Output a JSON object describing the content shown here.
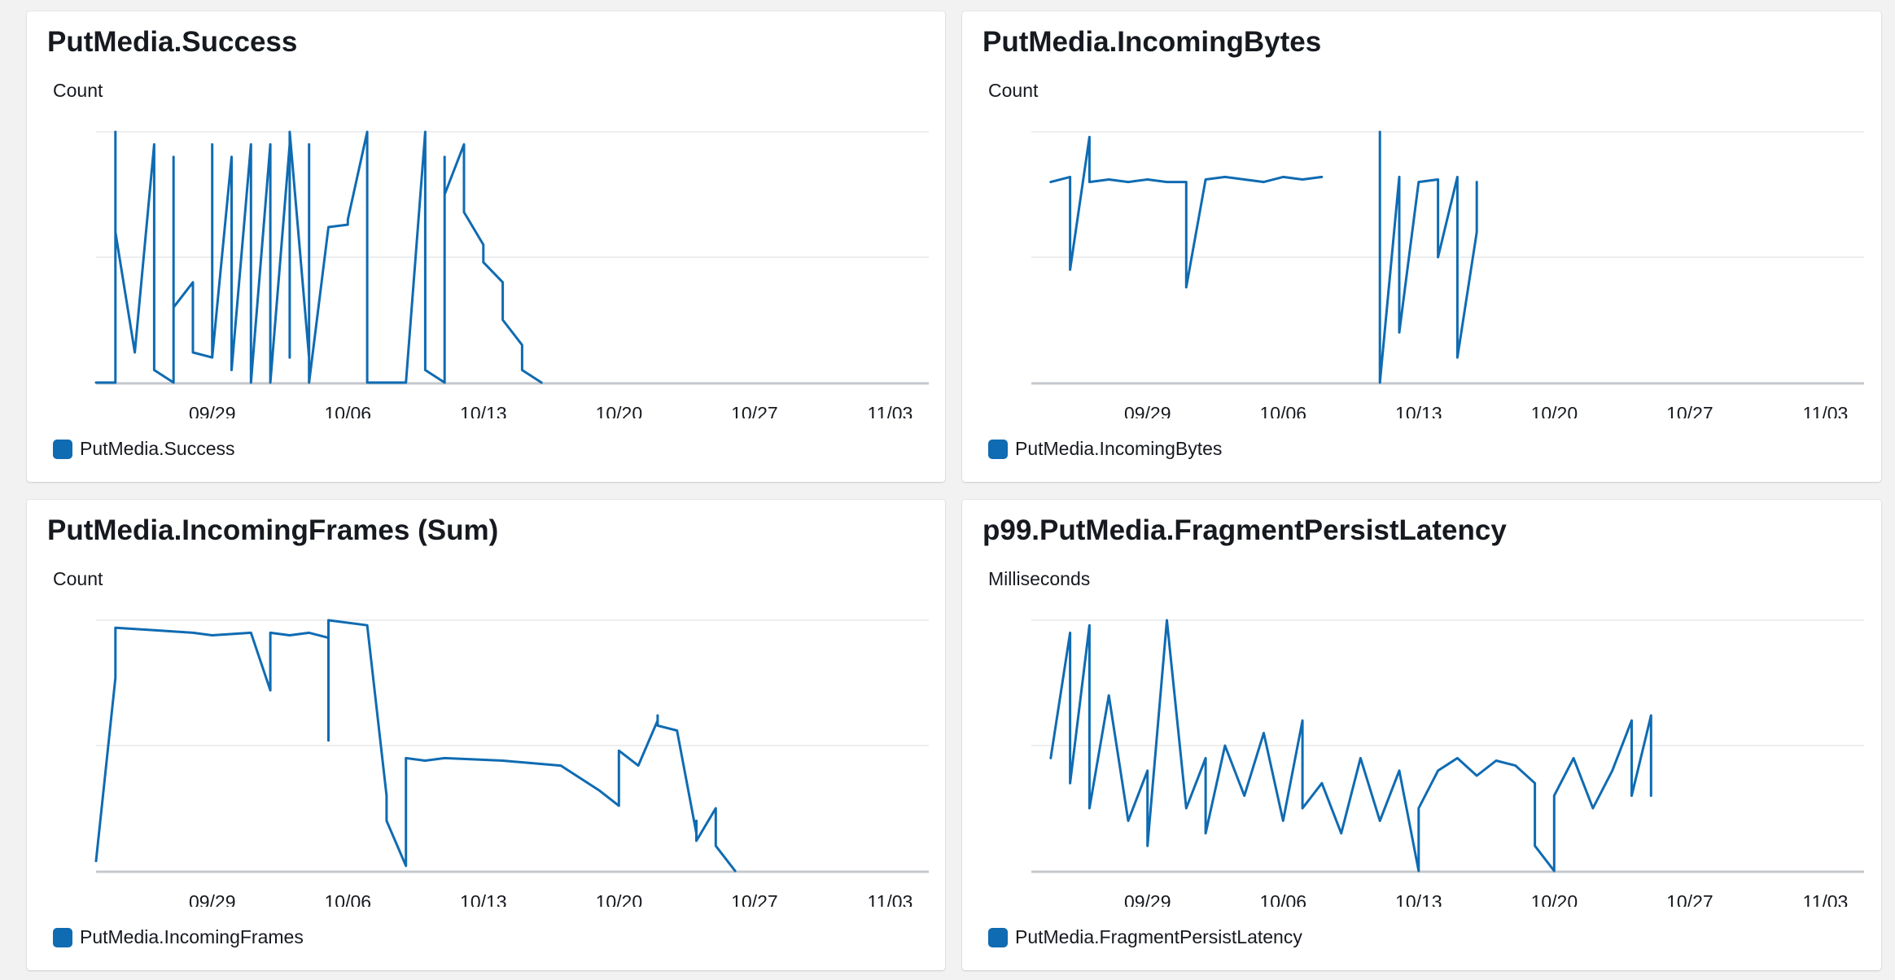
{
  "accent_color": "#0f6bb2",
  "chart_data": [
    {
      "type": "line",
      "title": "PutMedia.Success",
      "ylabel": "Count",
      "x_tick_labels": [
        "09/29",
        "10/06",
        "10/13",
        "10/20",
        "10/27",
        "11/03"
      ],
      "xlim": [
        "09/23",
        "11/05"
      ],
      "ylim": [
        0,
        1
      ],
      "grid": true,
      "legend_position": "bottom-left",
      "series": [
        {
          "name": "PutMedia.Success",
          "color": "#0f6bb2",
          "x": [
            "09/23",
            "09/24",
            "09/24",
            "09/24",
            "09/25",
            "09/25",
            "09/26",
            "09/26",
            "09/26",
            "09/26",
            "09/27",
            "09/27",
            "09/27",
            "09/28",
            "09/28",
            "09/28",
            "09/29",
            "09/29",
            "09/29",
            "09/29",
            "09/30",
            "09/30",
            "10/01",
            "10/01",
            "10/01",
            "10/02",
            "10/02",
            "10/02",
            "10/03",
            "10/03",
            "10/03",
            "10/04",
            "10/04",
            "10/04",
            "10/05",
            "10/05",
            "10/06",
            "10/06",
            "10/07",
            "10/07",
            "10/07",
            "10/08",
            "10/08",
            "10/09",
            "10/10",
            "10/10",
            "10/11",
            "10/11",
            "10/11",
            "10/12",
            "10/12",
            "10/12",
            "10/13",
            "10/13",
            "10/14",
            "10/14",
            "10/14",
            "10/15",
            "10/15",
            "10/16"
          ],
          "values": [
            0.0,
            0.0,
            1.0,
            0.6,
            0.12,
            0.12,
            0.95,
            0.05,
            0.9,
            0.05,
            0.0,
            0.9,
            0.3,
            0.4,
            0.2,
            0.12,
            0.1,
            0.1,
            0.95,
            0.1,
            0.9,
            0.05,
            0.95,
            0.1,
            0.0,
            0.95,
            0.1,
            0.0,
            0.95,
            0.1,
            1.0,
            0.1,
            0.95,
            0.0,
            0.62,
            0.62,
            0.63,
            0.65,
            1.0,
            0.1,
            0.0,
            0.0,
            0.0,
            0.0,
            1.0,
            0.05,
            0.0,
            0.9,
            0.75,
            0.95,
            0.7,
            0.68,
            0.55,
            0.48,
            0.4,
            0.33,
            0.25,
            0.15,
            0.05,
            0.0
          ]
        }
      ]
    },
    {
      "type": "line",
      "title": "PutMedia.IncomingBytes",
      "ylabel": "Count",
      "x_tick_labels": [
        "09/29",
        "10/06",
        "10/13",
        "10/20",
        "10/27",
        "11/03"
      ],
      "xlim": [
        "09/23",
        "11/05"
      ],
      "ylim": [
        0,
        1
      ],
      "grid": true,
      "legend_position": "bottom-left",
      "series": [
        {
          "name": "PutMedia.IncomingBytes",
          "color": "#0f6bb2",
          "x": [
            "09/24",
            "09/25",
            "09/25",
            "09/26",
            "09/26",
            "09/27",
            "09/28",
            "09/29",
            "09/30",
            "10/01",
            "10/01",
            "10/02",
            "10/03",
            "10/04",
            "10/05",
            "10/06",
            "10/07",
            "10/08",
            null,
            "10/11",
            "10/11",
            "10/11",
            "10/12",
            "10/12",
            "10/13",
            "10/14",
            "10/14",
            "10/15",
            "10/15",
            "10/16",
            "10/16"
          ],
          "values": [
            0.8,
            0.82,
            0.45,
            0.98,
            0.8,
            0.81,
            0.8,
            0.81,
            0.8,
            0.8,
            0.38,
            0.81,
            0.82,
            0.81,
            0.8,
            0.82,
            0.81,
            0.82,
            null,
            0.82,
            1.0,
            0.0,
            0.82,
            0.2,
            0.8,
            0.81,
            0.5,
            0.82,
            0.1,
            0.6,
            0.8
          ]
        }
      ]
    },
    {
      "type": "line",
      "title": "PutMedia.IncomingFrames (Sum)",
      "ylabel": "Count",
      "x_tick_labels": [
        "09/29",
        "10/06",
        "10/13",
        "10/20",
        "10/27",
        "11/03"
      ],
      "xlim": [
        "09/23",
        "11/05"
      ],
      "ylim": [
        0,
        1
      ],
      "grid": true,
      "legend_position": "bottom-left",
      "series": [
        {
          "name": "PutMedia.IncomingFrames",
          "color": "#0f6bb2",
          "x": [
            "09/23",
            "09/24",
            "09/24",
            "09/26",
            "09/28",
            "09/29",
            "10/01",
            "10/02",
            "10/02",
            "10/03",
            "10/04",
            "10/05",
            "10/05",
            "10/05",
            "10/07",
            "10/08",
            "10/08",
            "10/09",
            "10/09",
            "10/10",
            "10/11",
            "10/14",
            "10/17",
            "10/19",
            "10/20",
            "10/20",
            "10/21",
            "10/22",
            "10/22",
            "10/22",
            "10/23",
            "10/24",
            "10/24",
            "10/24",
            "10/25",
            "10/25",
            "10/26"
          ],
          "values": [
            0.04,
            0.77,
            0.97,
            0.96,
            0.95,
            0.94,
            0.95,
            0.72,
            0.95,
            0.94,
            0.95,
            0.93,
            0.52,
            1.0,
            0.98,
            0.3,
            0.2,
            0.02,
            0.45,
            0.44,
            0.45,
            0.44,
            0.42,
            0.32,
            0.26,
            0.48,
            0.42,
            0.6,
            0.62,
            0.58,
            0.56,
            0.15,
            0.2,
            0.12,
            0.25,
            0.1,
            0.0
          ]
        }
      ]
    },
    {
      "type": "line",
      "title": "p99.PutMedia.FragmentPersistLatency",
      "ylabel": "Milliseconds",
      "x_tick_labels": [
        "09/29",
        "10/06",
        "10/13",
        "10/20",
        "10/27",
        "11/03"
      ],
      "xlim": [
        "09/23",
        "11/05"
      ],
      "ylim": [
        0,
        1
      ],
      "grid": true,
      "legend_position": "bottom-left",
      "series": [
        {
          "name": "PutMedia.FragmentPersistLatency",
          "color": "#0f6bb2",
          "x": [
            "09/24",
            "09/25",
            "09/25",
            "09/26",
            "09/26",
            "09/27",
            "09/28",
            "09/29",
            "09/29",
            "09/30",
            "10/01",
            "10/02",
            "10/02",
            "10/03",
            "10/04",
            "10/05",
            "10/06",
            "10/07",
            "10/07",
            "10/08",
            "10/09",
            "10/10",
            "10/11",
            "10/12",
            "10/13",
            "10/13",
            "10/14",
            "10/15",
            "10/16",
            "10/17",
            "10/18",
            "10/19",
            "10/19",
            "10/20",
            "10/20",
            "10/21",
            "10/22",
            "10/23",
            "10/24",
            "10/24",
            "10/25",
            "10/25"
          ],
          "values": [
            0.45,
            0.95,
            0.35,
            0.98,
            0.25,
            0.7,
            0.2,
            0.4,
            0.1,
            1.0,
            0.25,
            0.45,
            0.15,
            0.5,
            0.3,
            0.55,
            0.2,
            0.6,
            0.25,
            0.35,
            0.15,
            0.45,
            0.2,
            0.4,
            0.0,
            0.25,
            0.4,
            0.45,
            0.38,
            0.44,
            0.42,
            0.35,
            0.1,
            0.0,
            0.3,
            0.45,
            0.25,
            0.4,
            0.6,
            0.3,
            0.62,
            0.3
          ]
        }
      ]
    }
  ]
}
